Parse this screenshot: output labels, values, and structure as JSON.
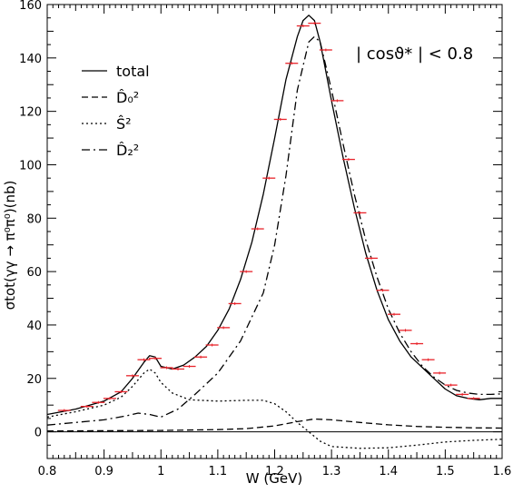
{
  "chart_data": {
    "type": "line",
    "title": "",
    "annotation": "| cosϑ* | < 0.8",
    "xlabel": "W (GeV)",
    "ylabel": "σtot(γγ → π⁰π⁰)(nb)",
    "xlim": [
      0.8,
      1.6
    ],
    "ylim": [
      -10,
      160
    ],
    "xticks": [
      0.8,
      0.9,
      1.0,
      1.1,
      1.2,
      1.3,
      1.4,
      1.5,
      1.6
    ],
    "xtick_labels": [
      "0.8",
      "0.9",
      "1",
      "1.1",
      "1.2",
      "1.3",
      "1.4",
      "1.5",
      "1.6"
    ],
    "yticks": [
      0,
      20,
      40,
      60,
      80,
      100,
      120,
      140,
      160
    ],
    "ytick_labels": [
      "0",
      "20",
      "40",
      "60",
      "80",
      "100",
      "120",
      "140",
      "160"
    ],
    "legend_position": "top-left",
    "series": [
      {
        "name": "total",
        "style": "solid",
        "x": [
          0.8,
          0.85,
          0.9,
          0.93,
          0.95,
          0.97,
          0.98,
          0.99,
          1.0,
          1.02,
          1.04,
          1.06,
          1.08,
          1.1,
          1.12,
          1.14,
          1.16,
          1.18,
          1.2,
          1.22,
          1.24,
          1.25,
          1.26,
          1.27,
          1.28,
          1.3,
          1.32,
          1.34,
          1.36,
          1.38,
          1.4,
          1.42,
          1.44,
          1.46,
          1.48,
          1.5,
          1.52,
          1.54,
          1.56,
          1.58,
          1.6
        ],
        "y": [
          6.5,
          8.5,
          11.5,
          15,
          20,
          26,
          28.5,
          28,
          24.5,
          23.5,
          25,
          28,
          32,
          38,
          46,
          57,
          71,
          89,
          110,
          132,
          148,
          154,
          156,
          154,
          146,
          124,
          103,
          84,
          67,
          53,
          42,
          34,
          28,
          24,
          20,
          16,
          13.5,
          12.5,
          12,
          12.5,
          12.5
        ]
      },
      {
        "name": "D̂₀²",
        "style": "dashed",
        "x": [
          0.8,
          0.9,
          1.0,
          1.1,
          1.15,
          1.2,
          1.24,
          1.27,
          1.3,
          1.35,
          1.4,
          1.45,
          1.5,
          1.55,
          1.6
        ],
        "y": [
          0.3,
          0.4,
          0.5,
          0.8,
          1.2,
          2.2,
          3.8,
          4.8,
          4.5,
          3.5,
          2.6,
          2.0,
          1.7,
          1.5,
          1.4
        ]
      },
      {
        "name": "Ŝ²",
        "style": "dotted",
        "x": [
          0.8,
          0.85,
          0.9,
          0.93,
          0.95,
          0.97,
          0.98,
          0.99,
          1.0,
          1.02,
          1.05,
          1.1,
          1.15,
          1.18,
          1.2,
          1.22,
          1.24,
          1.26,
          1.28,
          1.3,
          1.35,
          1.4,
          1.45,
          1.5,
          1.55,
          1.6
        ],
        "y": [
          5.5,
          7.5,
          10,
          13,
          17,
          22,
          23.5,
          22,
          18.5,
          14.5,
          12,
          11.5,
          11.8,
          11.8,
          10.5,
          7.5,
          3.5,
          0,
          -3.5,
          -5.5,
          -6.2,
          -6,
          -5,
          -3.8,
          -3.2,
          -2.8
        ]
      },
      {
        "name": "D̂₂²",
        "style": "dashdot",
        "x": [
          0.8,
          0.85,
          0.9,
          0.94,
          0.96,
          0.98,
          1.0,
          1.03,
          1.06,
          1.1,
          1.14,
          1.18,
          1.2,
          1.22,
          1.24,
          1.26,
          1.27,
          1.28,
          1.3,
          1.32,
          1.34,
          1.36,
          1.38,
          1.4,
          1.42,
          1.44,
          1.46,
          1.48,
          1.5,
          1.52,
          1.54,
          1.56,
          1.58,
          1.6
        ],
        "y": [
          2.5,
          3.5,
          4.5,
          6,
          7,
          6.5,
          5.5,
          8.5,
          14,
          22,
          34,
          52,
          70,
          96,
          128,
          146,
          148,
          146,
          128,
          108,
          89,
          72,
          58,
          46,
          37,
          30,
          24.5,
          20.5,
          17.5,
          15.5,
          14.5,
          14,
          14,
          14.2
        ]
      }
    ],
    "data_points": {
      "name": "data",
      "color": "#e8232a",
      "x": [
        0.83,
        0.87,
        0.89,
        0.91,
        0.93,
        0.95,
        0.97,
        0.99,
        1.01,
        1.03,
        1.05,
        1.07,
        1.09,
        1.11,
        1.13,
        1.15,
        1.17,
        1.19,
        1.21,
        1.23,
        1.25,
        1.27,
        1.29,
        1.31,
        1.33,
        1.35,
        1.37,
        1.39,
        1.41,
        1.43,
        1.45,
        1.47,
        1.49,
        1.51,
        1.53,
        1.55
      ],
      "y": [
        8,
        9.5,
        11,
        12.5,
        15,
        21,
        27,
        27.5,
        24,
        23.5,
        24.5,
        28,
        32.5,
        39,
        48,
        60,
        76,
        95,
        117,
        138,
        152,
        153,
        143,
        124,
        102,
        82,
        65,
        53,
        44,
        38,
        33,
        27,
        22,
        17.5,
        14,
        12.5
      ]
    }
  }
}
